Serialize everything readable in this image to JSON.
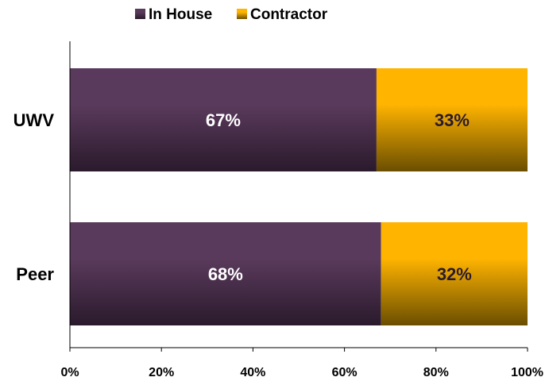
{
  "chart_data": {
    "type": "bar",
    "orientation": "horizontal",
    "stacked": true,
    "percent_stacked": true,
    "categories": [
      "UWV",
      "Peer"
    ],
    "series": [
      {
        "name": "In House",
        "values": [
          67,
          68
        ],
        "labels": [
          "67%",
          "68%"
        ],
        "color": "#5a3a5c",
        "color_dark": "#2a1a2c",
        "label_color": "#ffffff"
      },
      {
        "name": "Contractor",
        "values": [
          33,
          32
        ],
        "labels": [
          "33%",
          "32%"
        ],
        "color": "#ffb400",
        "color_dark": "#6a4e00",
        "label_color": "#2a1a2c"
      }
    ],
    "xlim": [
      0,
      100
    ],
    "x_ticks": [
      "0%",
      "20%",
      "40%",
      "60%",
      "80%",
      "100%"
    ],
    "legend_position": "top",
    "grid": false
  }
}
